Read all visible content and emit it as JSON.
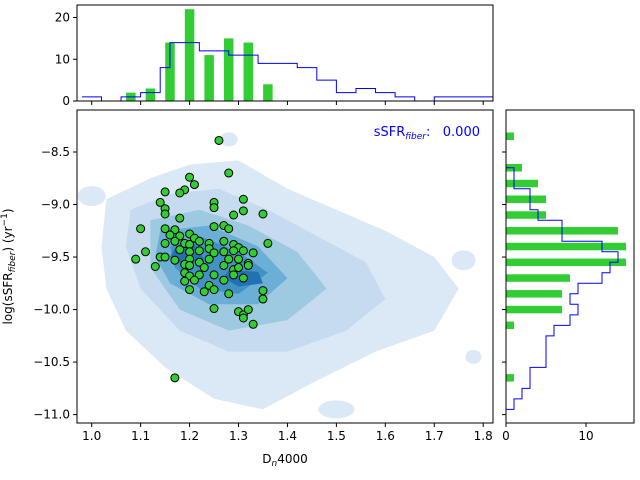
{
  "chart_data": [
    {
      "type": "bar",
      "panel": "top-histogram",
      "xlim": [
        0.97,
        1.82
      ],
      "ylim": [
        0,
        23
      ],
      "ticks": [
        "0",
        "10",
        "20"
      ],
      "bar_centers": [
        1.08,
        1.12,
        1.16,
        1.2,
        1.24,
        1.28,
        1.32,
        1.36
      ],
      "bar_values": [
        2,
        3,
        14,
        22,
        11,
        15,
        14,
        4
      ],
      "step_edges": [
        0.98,
        1.02,
        1.06,
        1.1,
        1.14,
        1.16,
        1.18,
        1.22,
        1.24,
        1.28,
        1.34,
        1.38,
        1.42,
        1.46,
        1.5,
        1.54,
        1.58,
        1.62,
        1.66,
        1.7,
        1.74,
        1.78,
        1.82
      ],
      "step_values": [
        1,
        0,
        1,
        2,
        8,
        14,
        14,
        12,
        12,
        11,
        9,
        9,
        8,
        5,
        2,
        3,
        2,
        1,
        0,
        1,
        1,
        1
      ]
    },
    {
      "type": "scatter",
      "panel": "main",
      "xlabel": "D_n4000",
      "ylabel": "log(sSFR_fiber) (yr^-1)",
      "xlim": [
        0.97,
        1.82
      ],
      "ylim": [
        -11.08,
        -8.1
      ],
      "xticks": [
        "1.0",
        "1.1",
        "1.2",
        "1.3",
        "1.4",
        "1.5",
        "1.6",
        "1.7",
        "1.8"
      ],
      "yticks": [
        "-8.5",
        "-9.0",
        "-9.5",
        "-10.0",
        "-10.5",
        "-11.0"
      ],
      "annotation": {
        "label": "sSFR",
        "subscript": "fiber",
        "suffix": ":",
        "value": "0.000"
      },
      "contours": [
        {
          "level": 1,
          "points": [
            [
              1.03,
              -8.95
            ],
            [
              1.12,
              -8.75
            ],
            [
              1.2,
              -8.62
            ],
            [
              1.3,
              -8.58
            ],
            [
              1.4,
              -8.85
            ],
            [
              1.5,
              -9.05
            ],
            [
              1.6,
              -9.25
            ],
            [
              1.7,
              -9.5
            ],
            [
              1.75,
              -9.8
            ],
            [
              1.7,
              -10.2
            ],
            [
              1.58,
              -10.4
            ],
            [
              1.45,
              -10.7
            ],
            [
              1.35,
              -10.95
            ],
            [
              1.25,
              -10.85
            ],
            [
              1.15,
              -10.55
            ],
            [
              1.07,
              -10.2
            ],
            [
              1.03,
              -9.8
            ],
            [
              1.02,
              -9.4
            ]
          ]
        },
        {
          "level": 2,
          "points": [
            [
              1.08,
              -9.05
            ],
            [
              1.16,
              -8.9
            ],
            [
              1.26,
              -8.85
            ],
            [
              1.36,
              -9.05
            ],
            [
              1.46,
              -9.3
            ],
            [
              1.56,
              -9.55
            ],
            [
              1.6,
              -9.9
            ],
            [
              1.52,
              -10.2
            ],
            [
              1.4,
              -10.4
            ],
            [
              1.28,
              -10.4
            ],
            [
              1.18,
              -10.2
            ],
            [
              1.1,
              -9.8
            ],
            [
              1.07,
              -9.4
            ]
          ]
        },
        {
          "level": 3,
          "points": [
            [
              1.12,
              -9.15
            ],
            [
              1.22,
              -9.05
            ],
            [
              1.32,
              -9.2
            ],
            [
              1.42,
              -9.45
            ],
            [
              1.48,
              -9.8
            ],
            [
              1.4,
              -10.1
            ],
            [
              1.28,
              -10.2
            ],
            [
              1.18,
              -10.0
            ],
            [
              1.12,
              -9.6
            ]
          ]
        },
        {
          "level": 4,
          "points": [
            [
              1.14,
              -9.25
            ],
            [
              1.24,
              -9.2
            ],
            [
              1.34,
              -9.4
            ],
            [
              1.4,
              -9.7
            ],
            [
              1.34,
              -9.95
            ],
            [
              1.24,
              -9.95
            ],
            [
              1.16,
              -9.75
            ],
            [
              1.13,
              -9.5
            ]
          ]
        },
        {
          "level": 5,
          "points": [
            [
              1.16,
              -9.4
            ],
            [
              1.22,
              -9.3
            ],
            [
              1.3,
              -9.45
            ],
            [
              1.36,
              -9.65
            ],
            [
              1.3,
              -9.85
            ],
            [
              1.22,
              -9.8
            ],
            [
              1.17,
              -9.6
            ]
          ]
        },
        {
          "level": 6,
          "points": [
            [
              1.17,
              -9.42
            ],
            [
              1.21,
              -9.38
            ],
            [
              1.23,
              -9.52
            ],
            [
              1.19,
              -9.58
            ],
            [
              1.16,
              -9.5
            ]
          ]
        },
        {
          "level": 6,
          "points": [
            [
              1.28,
              -9.62
            ],
            [
              1.34,
              -9.64
            ],
            [
              1.35,
              -9.75
            ],
            [
              1.3,
              -9.78
            ],
            [
              1.27,
              -9.7
            ]
          ]
        }
      ],
      "contour_colors": [
        "#dbe8f5",
        "#c6dbef",
        "#9ecae1",
        "#6baed6",
        "#4292c6",
        "#2171b5"
      ],
      "points": [
        [
          1.26,
          -8.39
        ],
        [
          1.28,
          -8.7
        ],
        [
          1.2,
          -8.74
        ],
        [
          1.21,
          -8.81
        ],
        [
          1.19,
          -8.86
        ],
        [
          1.18,
          -8.89
        ],
        [
          1.15,
          -8.88
        ],
        [
          1.14,
          -8.98
        ],
        [
          1.15,
          -9.04
        ],
        [
          1.15,
          -9.09
        ],
        [
          1.25,
          -8.98
        ],
        [
          1.25,
          -9.03
        ],
        [
          1.31,
          -8.95
        ],
        [
          1.31,
          -9.06
        ],
        [
          1.29,
          -9.1
        ],
        [
          1.35,
          -9.09
        ],
        [
          1.18,
          -9.13
        ],
        [
          1.1,
          -9.23
        ],
        [
          1.15,
          -9.23
        ],
        [
          1.17,
          -9.24
        ],
        [
          1.2,
          -9.28
        ],
        [
          1.16,
          -9.29
        ],
        [
          1.18,
          -9.3
        ],
        [
          1.21,
          -9.32
        ],
        [
          1.25,
          -9.21
        ],
        [
          1.27,
          -9.2
        ],
        [
          1.28,
          -9.23
        ],
        [
          1.15,
          -9.37
        ],
        [
          1.17,
          -9.35
        ],
        [
          1.19,
          -9.37
        ],
        [
          1.2,
          -9.38
        ],
        [
          1.22,
          -9.35
        ],
        [
          1.24,
          -9.37
        ],
        [
          1.27,
          -9.35
        ],
        [
          1.29,
          -9.38
        ],
        [
          1.3,
          -9.41
        ],
        [
          1.36,
          -9.37
        ],
        [
          1.11,
          -9.45
        ],
        [
          1.14,
          -9.5
        ],
        [
          1.18,
          -9.43
        ],
        [
          1.2,
          -9.45
        ],
        [
          1.22,
          -9.44
        ],
        [
          1.24,
          -9.42
        ],
        [
          1.25,
          -9.46
        ],
        [
          1.27,
          -9.45
        ],
        [
          1.29,
          -9.44
        ],
        [
          1.31,
          -9.44
        ],
        [
          1.33,
          -9.46
        ],
        [
          1.09,
          -9.52
        ],
        [
          1.15,
          -9.5
        ],
        [
          1.17,
          -9.53
        ],
        [
          1.2,
          -9.52
        ],
        [
          1.22,
          -9.55
        ],
        [
          1.24,
          -9.52
        ],
        [
          1.28,
          -9.52
        ],
        [
          1.3,
          -9.52
        ],
        [
          1.32,
          -9.56
        ],
        [
          1.13,
          -9.59
        ],
        [
          1.19,
          -9.57
        ],
        [
          1.2,
          -9.58
        ],
        [
          1.23,
          -9.6
        ],
        [
          1.27,
          -9.58
        ],
        [
          1.29,
          -9.62
        ],
        [
          1.3,
          -9.6
        ],
        [
          1.32,
          -9.58
        ],
        [
          1.19,
          -9.65
        ],
        [
          1.2,
          -9.68
        ],
        [
          1.22,
          -9.67
        ],
        [
          1.25,
          -9.67
        ],
        [
          1.29,
          -9.67
        ],
        [
          1.19,
          -9.73
        ],
        [
          1.21,
          -9.72
        ],
        [
          1.24,
          -9.77
        ],
        [
          1.27,
          -9.72
        ],
        [
          1.31,
          -9.7
        ],
        [
          1.2,
          -9.81
        ],
        [
          1.23,
          -9.83
        ],
        [
          1.25,
          -9.81
        ],
        [
          1.28,
          -9.85
        ],
        [
          1.35,
          -9.82
        ],
        [
          1.35,
          -9.9
        ],
        [
          1.25,
          -9.99
        ],
        [
          1.3,
          -10.02
        ],
        [
          1.31,
          -10.05
        ],
        [
          1.32,
          -10.0
        ],
        [
          1.31,
          -10.08
        ],
        [
          1.33,
          -10.14
        ],
        [
          1.17,
          -10.65
        ]
      ]
    },
    {
      "type": "bar",
      "panel": "right-histogram",
      "orientation": "horizontal",
      "xlim": [
        0,
        16
      ],
      "ylim": [
        -11.08,
        -8.1
      ],
      "ticks": [
        "0",
        "10"
      ],
      "bar_centers": [
        -8.35,
        -8.65,
        -8.8,
        -8.95,
        -9.1,
        -9.25,
        -9.4,
        -9.55,
        -9.7,
        -9.85,
        -10.0,
        -10.15,
        -10.65
      ],
      "bar_values": [
        1,
        2,
        4,
        5,
        5,
        14,
        15,
        15,
        8,
        7,
        7,
        1,
        1
      ],
      "step_edges": [
        -8.55,
        -8.65,
        -8.75,
        -8.85,
        -8.95,
        -9.05,
        -9.15,
        -9.25,
        -9.35,
        -9.45,
        -9.55,
        -9.65,
        -9.75,
        -9.85,
        -9.95,
        -10.05,
        -10.15,
        -10.25,
        -10.35,
        -10.45,
        -10.55,
        -10.65,
        -10.75,
        -10.85,
        -10.95,
        -11.05
      ],
      "step_values": [
        0,
        1,
        1,
        3,
        3,
        4,
        7,
        7,
        12,
        14,
        13,
        12,
        9,
        8,
        9,
        8,
        6,
        5,
        5,
        5,
        3,
        3,
        2,
        1,
        0
      ]
    }
  ]
}
